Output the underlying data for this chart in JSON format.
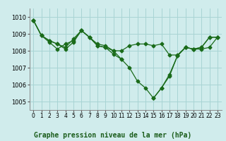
{
  "xlabel": "Graphe pression niveau de la mer (hPa)",
  "bg_color": "#d0ecec",
  "grid_color": "#a8d4d4",
  "line_color": "#1a6b1a",
  "xlim": [
    -0.5,
    23.5
  ],
  "ylim": [
    1004.5,
    1010.5
  ],
  "yticks": [
    1005,
    1006,
    1007,
    1008,
    1009,
    1010
  ],
  "xticks": [
    0,
    1,
    2,
    3,
    4,
    5,
    6,
    7,
    8,
    9,
    10,
    11,
    12,
    13,
    14,
    15,
    16,
    17,
    18,
    19,
    20,
    21,
    22,
    23
  ],
  "series": [
    [
      1009.8,
      1008.9,
      1008.6,
      1008.4,
      1008.2,
      1008.7,
      1009.2,
      1008.8,
      1008.4,
      1008.3,
      1008.0,
      1008.0,
      1008.3,
      1008.4,
      1008.4,
      1008.3,
      1008.4,
      1007.75,
      1007.75,
      1008.2,
      1008.1,
      1008.1,
      1008.2,
      1008.8
    ],
    [
      1009.8,
      1008.9,
      1008.6,
      1008.4,
      1008.1,
      1008.5,
      1009.2,
      1008.8,
      1008.3,
      1008.2,
      1008.0,
      1007.5,
      1007.0,
      1006.2,
      1005.8,
      1005.2,
      1005.8,
      1006.5,
      1007.7,
      1008.2,
      1008.1,
      1008.2,
      1008.8,
      1008.8
    ],
    [
      1009.8,
      1008.9,
      1008.5,
      1008.1,
      1008.4,
      1008.6,
      1009.2,
      1008.8,
      1008.3,
      1008.2,
      1007.8,
      1007.5,
      null,
      null,
      null,
      null,
      null,
      null,
      null,
      null,
      null,
      null,
      null,
      null
    ],
    [
      null,
      null,
      null,
      null,
      null,
      null,
      null,
      null,
      null,
      null,
      null,
      null,
      null,
      null,
      null,
      1005.2,
      1005.8,
      1006.6,
      1007.7,
      1008.2,
      1008.1,
      1008.2,
      1008.8,
      1008.8
    ]
  ],
  "xlabel_fontsize": 7,
  "tick_fontsize": 6,
  "marker_size": 2.5,
  "line_width": 0.9
}
